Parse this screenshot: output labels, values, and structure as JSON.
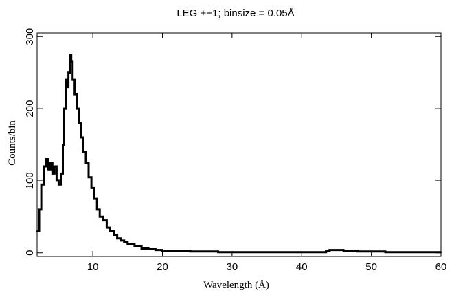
{
  "chart_data": {
    "type": "line",
    "title": "LEG +−1; binsize = 0.05Å",
    "xlabel": "Wavelength (Å)",
    "ylabel": "Counts/bin",
    "xlim": [
      2,
      60
    ],
    "ylim": [
      -5,
      305
    ],
    "xticks": [
      10,
      20,
      30,
      40,
      50,
      60
    ],
    "yticks": [
      0,
      100,
      200,
      300
    ],
    "grid": false,
    "legend": "none",
    "line_color": "#000000",
    "series": [
      {
        "x": [
          2.0,
          2.3,
          2.6,
          3.0,
          3.3,
          3.6,
          3.9,
          4.2,
          4.5,
          4.8,
          5.1,
          5.4,
          5.7,
          5.9,
          6.1,
          6.3,
          6.5,
          6.7,
          6.9,
          7.1,
          7.4,
          7.7,
          8.0,
          8.3,
          8.6,
          9.0,
          9.4,
          9.8,
          10.2,
          10.6,
          11.0,
          11.5,
          12.0,
          12.5,
          13.0,
          13.5,
          14.0,
          14.5,
          15.0,
          16.0,
          17.0,
          18.0,
          19.0,
          20.0,
          22.0,
          24.0,
          26.0,
          28.0,
          30.0,
          35.0,
          40.0,
          42.0,
          43.5,
          44.0,
          45.0,
          46.0,
          47.0,
          48.0,
          50.0,
          52.0,
          55.0,
          58.0,
          60.0
        ],
        "y": [
          30,
          60,
          95,
          120,
          130,
          115,
          125,
          110,
          120,
          100,
          95,
          110,
          150,
          200,
          240,
          230,
          250,
          275,
          265,
          240,
          220,
          200,
          180,
          160,
          140,
          125,
          105,
          90,
          75,
          60,
          50,
          45,
          35,
          30,
          25,
          20,
          17,
          15,
          12,
          9,
          6,
          5,
          4,
          3,
          3,
          2,
          2,
          1,
          1,
          1,
          1,
          1,
          3,
          4,
          4,
          3,
          3,
          2,
          2,
          1,
          1,
          1,
          1
        ]
      }
    ]
  }
}
